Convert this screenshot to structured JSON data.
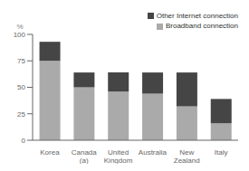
{
  "chart_data": {
    "type": "bar",
    "stacked": true,
    "categories": [
      "Korea",
      "Canada\n(a)",
      "United\nKingdom",
      "Australia",
      "New\nZealand",
      "Italy"
    ],
    "series": [
      {
        "name": "Broadband connection",
        "color": "#aaaaaa",
        "values": [
          75,
          50,
          46,
          44,
          32,
          16
        ]
      },
      {
        "name": "Other Internet connection",
        "color": "#454545",
        "values": [
          18,
          14,
          18,
          20,
          32,
          23
        ]
      }
    ],
    "y_label": "%",
    "ylim": [
      0,
      100
    ],
    "yticks": [
      0,
      25,
      50,
      75,
      100
    ],
    "grid": false,
    "legend": "upper right"
  }
}
